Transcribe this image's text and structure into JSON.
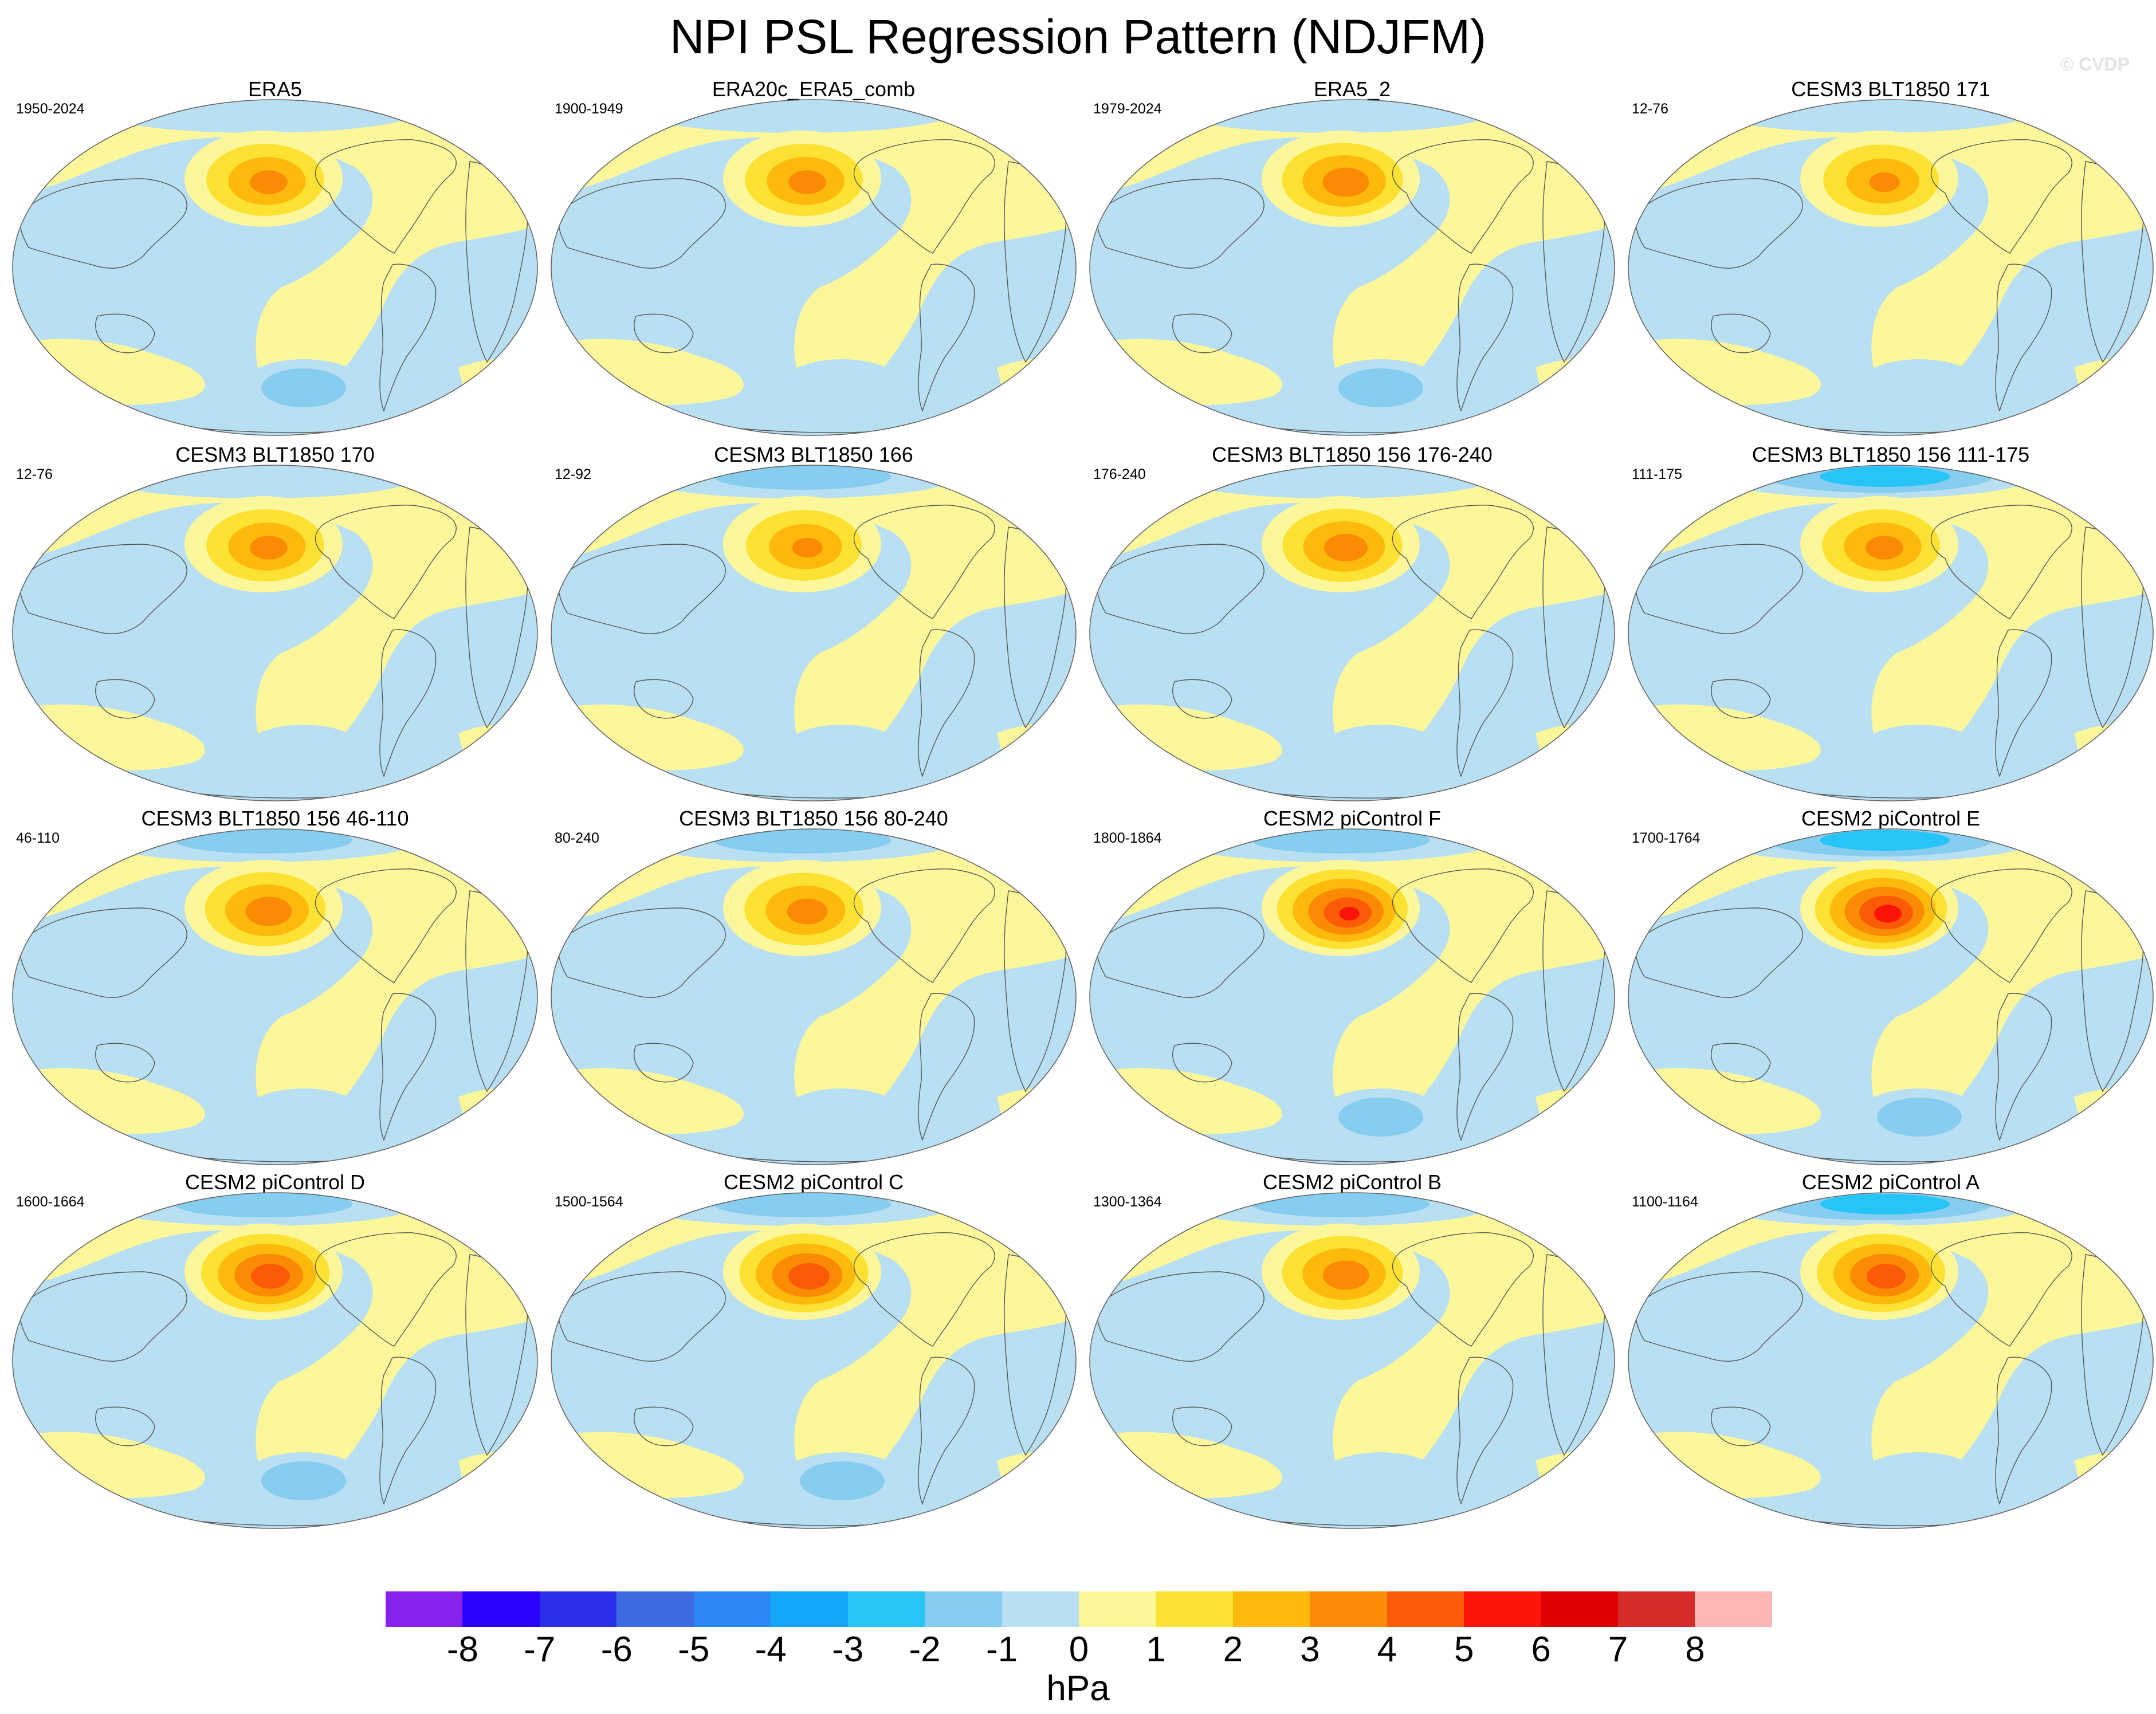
{
  "title": "NPI PSL Regression Pattern (NDJFM)",
  "watermark": "© CVDP",
  "colors": {
    "ocean_negative": "#b9e0f2",
    "land_positive": "#fdf79c",
    "coast": "#555555"
  },
  "panels": [
    {
      "name": "ERA5",
      "years": "1950-2024",
      "peak": 3.5,
      "arctic_low": 0.3,
      "so_low": 1.2
    },
    {
      "name": "ERA20c_ERA5_comb",
      "years": "1900-1949",
      "peak": 3.5,
      "arctic_low": 0.2,
      "so_low": 0.3
    },
    {
      "name": "ERA5_2",
      "years": "1979-2024",
      "peak": 3.8,
      "arctic_low": 0.3,
      "so_low": 1.6
    },
    {
      "name": "CESM3 BLT1850 171",
      "years": "12-76",
      "peak": 3.3,
      "arctic_low": 0.6,
      "so_low": 0.4
    },
    {
      "name": "CESM3 BLT1850 170",
      "years": "12-76",
      "peak": 3.5,
      "arctic_low": 1.0,
      "so_low": 0.3
    },
    {
      "name": "CESM3 BLT1850 166",
      "years": "12-92",
      "peak": 3.3,
      "arctic_low": 1.2,
      "so_low": 0.3
    },
    {
      "name": "CESM3 BLT1850 156 176-240",
      "years": "176-240",
      "peak": 3.7,
      "arctic_low": 0.8,
      "so_low": 0.3
    },
    {
      "name": "CESM3 BLT1850 156 111-175",
      "years": "111-175",
      "peak": 3.5,
      "arctic_low": 2.2,
      "so_low": 1.0
    },
    {
      "name": "CESM3 BLT1850 156 46-110",
      "years": "46-110",
      "peak": 3.8,
      "arctic_low": 1.8,
      "so_low": 0.4
    },
    {
      "name": "CESM3 BLT1850 156 80-240",
      "years": "80-240",
      "peak": 3.6,
      "arctic_low": 1.3,
      "so_low": 0.3
    },
    {
      "name": "CESM2 piControl F",
      "years": "1800-1864",
      "peak": 5.2,
      "arctic_low": 2.0,
      "so_low": 1.6
    },
    {
      "name": "CESM2 piControl E",
      "years": "1700-1764",
      "peak": 5.5,
      "arctic_low": 2.6,
      "so_low": 1.4
    },
    {
      "name": "CESM2 piControl D",
      "years": "1600-1664",
      "peak": 4.8,
      "arctic_low": 1.4,
      "so_low": 1.4
    },
    {
      "name": "CESM2 piControl C",
      "years": "1500-1564",
      "peak": 4.9,
      "arctic_low": 1.8,
      "so_low": 1.8
    },
    {
      "name": "CESM2 piControl B",
      "years": "1300-1364",
      "peak": 3.8,
      "arctic_low": 1.1,
      "so_low": 0.8
    },
    {
      "name": "CESM2 piControl A",
      "years": "1100-1164",
      "peak": 4.8,
      "arctic_low": 3.0,
      "so_low": 1.0
    }
  ],
  "colorbar": {
    "colors": [
      "#8a22ee",
      "#2a00ff",
      "#2a30e8",
      "#3e6ce0",
      "#2c86f4",
      "#13a5f6",
      "#27c4f8",
      "#86cdef",
      "#b9e0f2",
      "#fdf79c",
      "#fde233",
      "#fdba0c",
      "#fb8a05",
      "#fb5a07",
      "#fd1408",
      "#dd0000",
      "#d62b2b",
      "#fdb5b5"
    ],
    "ticks": [
      "-8",
      "-7",
      "-6",
      "-5",
      "-4",
      "-3",
      "-2",
      "-1",
      "0",
      "1",
      "2",
      "3",
      "4",
      "5",
      "6",
      "7",
      "8"
    ],
    "unit": "hPa"
  }
}
